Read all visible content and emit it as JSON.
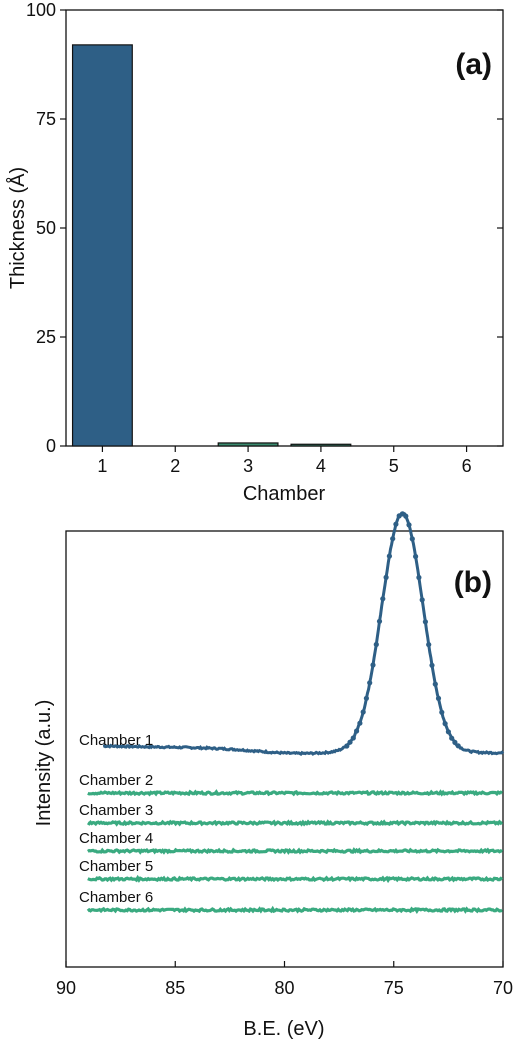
{
  "chart_data": [
    {
      "type": "bar",
      "panel_label": "(a)",
      "xlabel": "Chamber",
      "ylabel": "Thickness (Å)",
      "categories": [
        "1",
        "2",
        "3",
        "4",
        "5",
        "6"
      ],
      "values": [
        92,
        0,
        0.7,
        0.4,
        0,
        0
      ],
      "ylim": [
        0,
        100
      ],
      "yticks": [
        "0",
        "25",
        "50",
        "75",
        "100"
      ],
      "colors": [
        "#2e5f86",
        "#2e5f86",
        "#3a8a6e",
        "#3a8a6e",
        "#3a8a6e",
        "#3a8a6e"
      ],
      "grid": false
    },
    {
      "type": "line",
      "panel_label": "(b)",
      "xlabel": "B.E. (eV)",
      "ylabel": "Intensity (a.u.)",
      "xlim": [
        90,
        70
      ],
      "xticks": [
        "90",
        "85",
        "80",
        "75",
        "70"
      ],
      "yticks_shown": false,
      "grid": false,
      "peak": {
        "center": 74.6,
        "amplitude": 238,
        "sigma": 0.95
      },
      "series": [
        {
          "name": "Chamber 1",
          "color": "#2e5f86",
          "style": "dots",
          "x_start": 88.3,
          "x_end": 70,
          "baseline": 214,
          "slope_start": 7,
          "dip_center": 79.5,
          "dip_depth": 4
        },
        {
          "name": "Chamber 2",
          "color": "#3aaa80",
          "style": "line",
          "x_start": 89,
          "x_end": 70,
          "baseline": 174
        },
        {
          "name": "Chamber 3",
          "color": "#3aaa80",
          "style": "line",
          "x_start": 89,
          "x_end": 70,
          "baseline": 144
        },
        {
          "name": "Chamber 4",
          "color": "#3aaa80",
          "style": "line",
          "x_start": 89,
          "x_end": 70,
          "baseline": 116
        },
        {
          "name": "Chamber 5",
          "color": "#3aaa80",
          "style": "line",
          "x_start": 89,
          "x_end": 70,
          "baseline": 88
        },
        {
          "name": "Chamber 6",
          "color": "#3aaa80",
          "style": "line",
          "x_start": 89,
          "x_end": 70,
          "baseline": 57
        }
      ]
    }
  ]
}
